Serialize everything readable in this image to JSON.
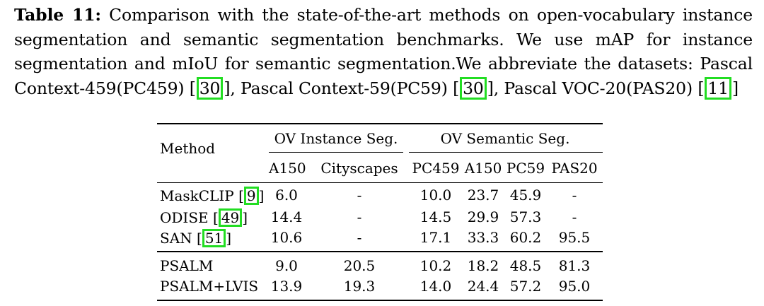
{
  "caption": {
    "label": "Table 11:",
    "line1": " Comparison with the state-of-the-art methods on open-vocabulary instance segmentation and semantic segmentation benchmarks. We use mAP for instance segmentation and mIoU for semantic segmentation.We abbreviate the datasets: Pascal Context-459(PC459) ",
    "cite1": "30",
    "mid1": ", Pascal Context-59(PC59) ",
    "cite2": "30",
    "mid2": ", Pascal VOC-20(PAS20) ",
    "cite3": "11"
  },
  "table": {
    "header_method": "Method",
    "group_instance": "OV Instance Seg.",
    "group_semantic": "OV Semantic Seg.",
    "sub_headers": [
      "A150",
      "Cityscapes",
      "PC459",
      "A150",
      "PC59",
      "PAS20"
    ],
    "rows": [
      {
        "method": "MaskCLIP",
        "cite": "9",
        "a150i": "6.0",
        "city": "-",
        "pc459": "10.0",
        "a150s": "23.7",
        "pc59": "45.9",
        "pas20": "-"
      },
      {
        "method": "ODISE",
        "cite": "49",
        "a150i": "14.4",
        "city": "-",
        "pc459": "14.5",
        "a150s": "29.9",
        "pc59": "57.3",
        "pas20": "-"
      },
      {
        "method": "SAN",
        "cite": "51",
        "a150i": "10.6",
        "city": "-",
        "pc459": "17.1",
        "a150s": "33.3",
        "pc59": "60.2",
        "pas20": "95.5"
      },
      {
        "method": "PSALM",
        "cite": "",
        "a150i": "9.0",
        "city": "20.5",
        "pc459": "10.2",
        "a150s": "18.2",
        "pc59": "48.5",
        "pas20": "81.3"
      },
      {
        "method": "PSALM+LVIS",
        "cite": "",
        "a150i": "13.9",
        "city": "19.3",
        "pc459": "14.0",
        "a150s": "24.4",
        "pc59": "57.2",
        "pas20": "95.0"
      }
    ]
  }
}
